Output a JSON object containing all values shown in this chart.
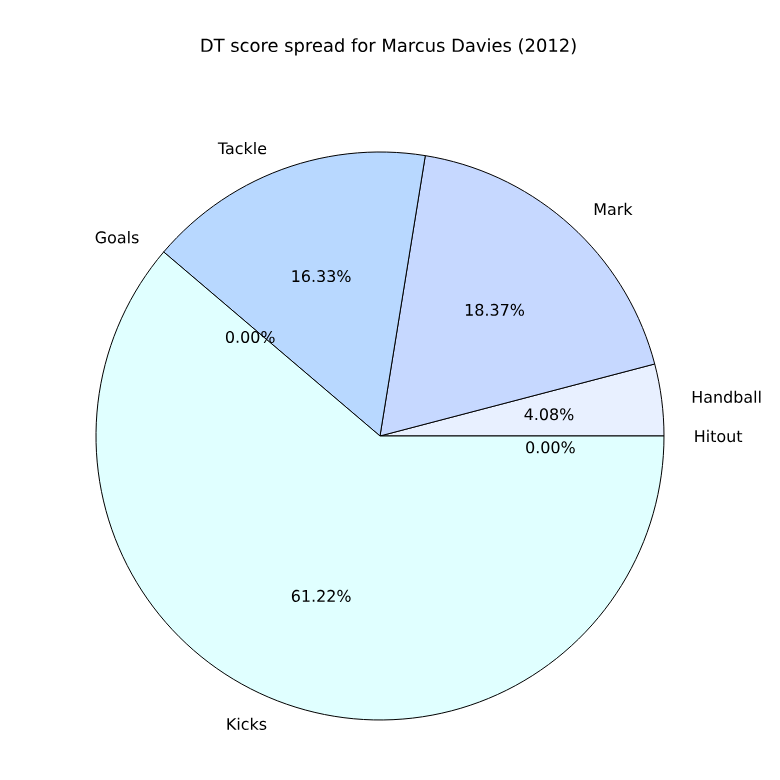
{
  "chart_data": {
    "type": "pie",
    "title": "DT score spread for Marcus Davies (2012)",
    "categories": [
      "Hitout",
      "Handball",
      "Mark",
      "Tackle",
      "Goals",
      "Kicks"
    ],
    "values": [
      0.0,
      4.08,
      18.37,
      16.33,
      0.0,
      61.22
    ],
    "value_labels": [
      "0.00%",
      "4.08%",
      "18.37%",
      "16.33%",
      "0.00%",
      "61.22%"
    ],
    "colors": [
      "#f0f8ff",
      "#e8f0ff",
      "#c6d8ff",
      "#b8d8ff",
      "#add8e6",
      "#e0ffff"
    ]
  }
}
